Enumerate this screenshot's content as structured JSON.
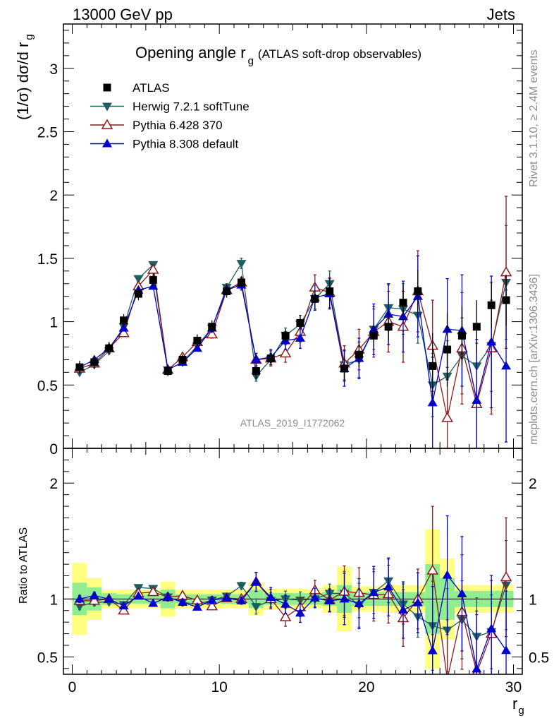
{
  "header": {
    "left": "13000 GeV pp",
    "right": "Jets"
  },
  "side_text": {
    "rivet": "Rivet 3.1.10, ≥ 2.4M events",
    "mcplots": "mcplots.cern.ch [arXiv:1306.3436]"
  },
  "watermark": "ATLAS_2019_I1772062",
  "chart_data": {
    "type": "line",
    "title": "Opening angle r",
    "title_sub": "g",
    "title_suffix": "(ATLAS soft-drop observables)",
    "ylabel": "(1/σ) dσ/d r",
    "ylabel_sub": "g",
    "xlabel": "r",
    "xlabel_sub": "g",
    "ratio_ylabel": "Ratio to ATLAS",
    "xlim": [
      -0.6,
      30.6
    ],
    "ylim": [
      0,
      3.35
    ],
    "ratio_ylim": [
      0.35,
      2.3
    ],
    "x_ticks": [
      "0",
      "10",
      "20",
      "30"
    ],
    "y_ticks": [
      "0",
      "0.5",
      "1",
      "1.5",
      "2",
      "2.5",
      "3"
    ],
    "ratio_y_ticks": [
      "0.5",
      "1",
      "2"
    ],
    "legend_position": "top-left",
    "x": [
      0.5,
      1.5,
      2.5,
      3.5,
      4.5,
      5.5,
      6.5,
      7.5,
      8.5,
      9.5,
      10.5,
      11.5,
      12.5,
      13.5,
      14.5,
      15.5,
      16.5,
      17.5,
      18.5,
      19.5,
      20.5,
      21.5,
      22.5,
      23.5,
      24.5,
      25.5,
      26.5,
      27.5,
      28.5,
      29.5
    ],
    "atlas": {
      "name": "ATLAS",
      "color": "#000000",
      "values": [
        0.64,
        0.68,
        0.79,
        1.01,
        1.22,
        1.33,
        0.61,
        0.7,
        0.85,
        0.96,
        1.24,
        1.31,
        0.61,
        0.71,
        0.89,
        0.99,
        1.18,
        1.24,
        0.63,
        0.74,
        0.89,
        0.96,
        1.15,
        1.24,
        0.65,
        0.78,
        0.89,
        0.96,
        1.13,
        1.17
      ],
      "err_lo": [
        0.05,
        0.05,
        0.05,
        0.05,
        0.05,
        0.05,
        0.04,
        0.04,
        0.05,
        0.05,
        0.05,
        0.05,
        0.06,
        0.05,
        0.05,
        0.06,
        0.07,
        0.08,
        0.1,
        0.1,
        0.1,
        0.11,
        0.14,
        0.17,
        0.26,
        0.29,
        0.23,
        0.21,
        0.18,
        0.2
      ],
      "ratio_band_inner": [
        0.14,
        0.1,
        0.05,
        0.04,
        0.04,
        0.04,
        0.08,
        0.04,
        0.04,
        0.04,
        0.04,
        0.04,
        0.08,
        0.05,
        0.05,
        0.05,
        0.05,
        0.06,
        0.12,
        0.06,
        0.06,
        0.06,
        0.06,
        0.06,
        0.3,
        0.18,
        0.07,
        0.07,
        0.07,
        0.07
      ],
      "ratio_band_outer": [
        0.31,
        0.18,
        0.08,
        0.08,
        0.08,
        0.08,
        0.15,
        0.08,
        0.08,
        0.08,
        0.08,
        0.08,
        0.14,
        0.09,
        0.09,
        0.09,
        0.08,
        0.12,
        0.28,
        0.11,
        0.11,
        0.12,
        0.12,
        0.12,
        0.6,
        0.35,
        0.12,
        0.12,
        0.12,
        0.12
      ]
    },
    "series": [
      {
        "name": "Herwig 7.2.1 softTune",
        "color": "#1f5e5e",
        "marker": "triangle-down",
        "values": [
          0.6,
          0.66,
          0.77,
          0.96,
          1.34,
          1.45,
          0.62,
          0.68,
          0.81,
          0.95,
          1.27,
          1.46,
          0.57,
          0.7,
          0.89,
          0.98,
          1.18,
          1.3,
          0.66,
          0.7,
          0.94,
          1.11,
          1.1,
          1.05,
          0.5,
          0.57,
          0.73,
          0.65,
          0.81,
          1.31
        ],
        "err": [
          0.02,
          0.02,
          0.02,
          0.02,
          0.02,
          0.02,
          0.02,
          0.02,
          0.02,
          0.02,
          0.03,
          0.04,
          0.04,
          0.05,
          0.06,
          0.07,
          0.08,
          0.1,
          0.12,
          0.14,
          0.16,
          0.18,
          0.2,
          0.22,
          0.25,
          0.28,
          0.3,
          0.32,
          0.36,
          0.45
        ]
      },
      {
        "name": "Pythia 6.428 370",
        "color": "#8b1a1a",
        "marker": "triangle-open",
        "values": [
          0.63,
          0.67,
          0.79,
          0.91,
          1.28,
          1.41,
          0.62,
          0.72,
          0.84,
          0.9,
          1.25,
          1.31,
          0.7,
          0.71,
          0.75,
          0.92,
          1.27,
          1.23,
          0.67,
          0.78,
          0.92,
          1.0,
          0.96,
          1.24,
          0.81,
          0.24,
          0.79,
          0.35,
          0.79,
          1.39
        ],
        "err": [
          0.02,
          0.02,
          0.02,
          0.02,
          0.02,
          0.02,
          0.02,
          0.02,
          0.02,
          0.03,
          0.03,
          0.04,
          0.05,
          0.06,
          0.07,
          0.08,
          0.1,
          0.12,
          0.14,
          0.16,
          0.2,
          0.24,
          0.28,
          0.32,
          0.36,
          0.4,
          0.44,
          0.48,
          0.52,
          0.6
        ]
      },
      {
        "name": "Pythia 8.308 default",
        "color": "#0000cc",
        "marker": "triangle-up",
        "values": [
          0.64,
          0.7,
          0.79,
          0.95,
          1.25,
          1.28,
          0.62,
          0.68,
          0.79,
          0.95,
          1.25,
          1.29,
          0.7,
          0.72,
          0.85,
          0.87,
          1.19,
          1.22,
          0.63,
          0.71,
          0.94,
          1.06,
          1.04,
          1.2,
          0.36,
          0.94,
          0.93,
          0.38,
          0.84,
          0.65
        ],
        "err": [
          0.02,
          0.02,
          0.02,
          0.02,
          0.02,
          0.02,
          0.02,
          0.02,
          0.02,
          0.03,
          0.03,
          0.04,
          0.05,
          0.06,
          0.07,
          0.08,
          0.1,
          0.12,
          0.14,
          0.16,
          0.2,
          0.24,
          0.28,
          0.32,
          0.36,
          0.4,
          0.44,
          0.48,
          0.52,
          0.6
        ]
      }
    ]
  }
}
